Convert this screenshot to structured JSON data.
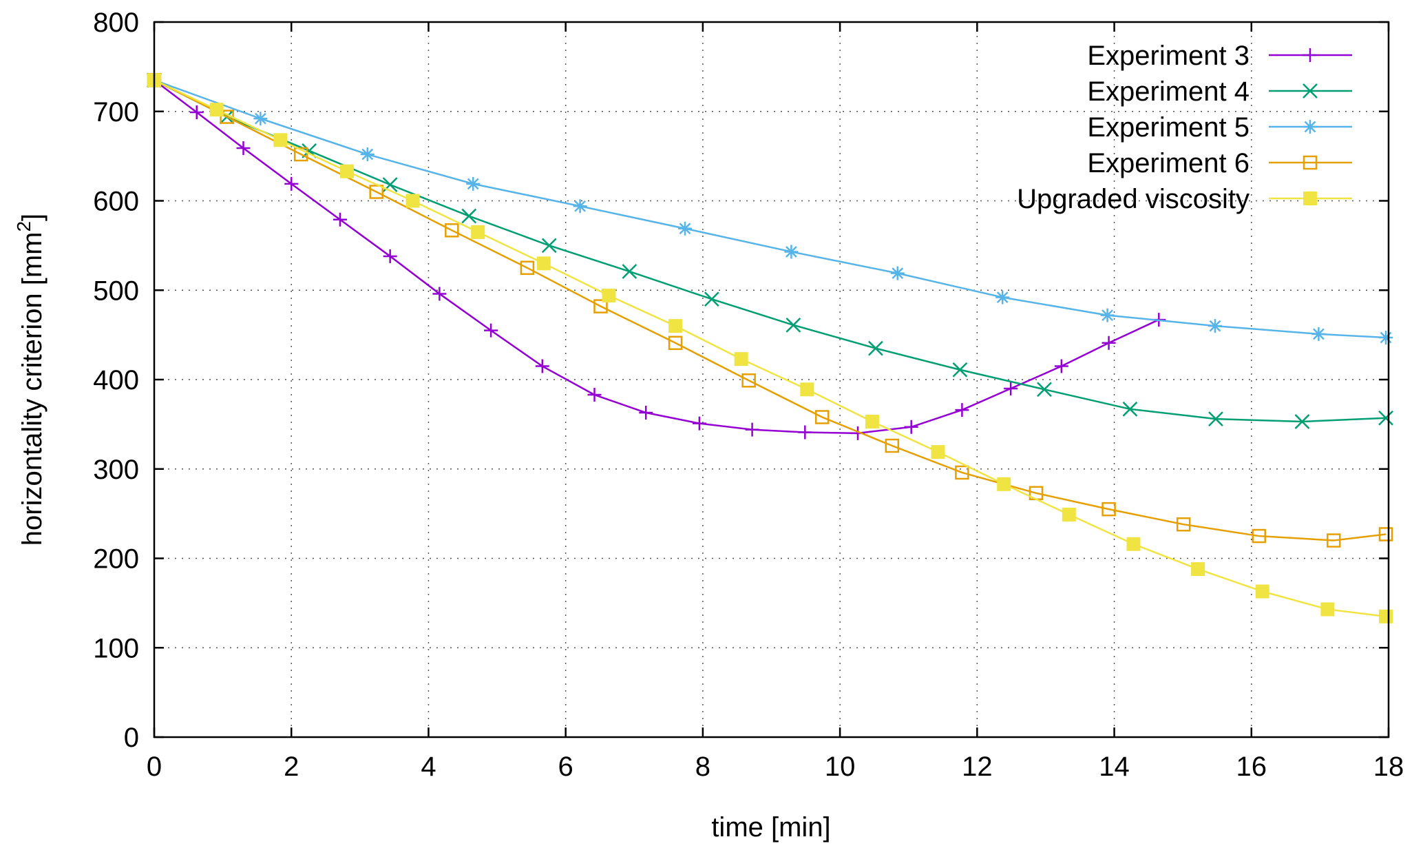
{
  "chart_data": {
    "type": "line",
    "title": "",
    "xlabel": "time [min]",
    "ylabel": "horizontality criterion [mm",
    "ylabel_sup": "2",
    "ylabel_end": "]",
    "xlim": [
      0,
      18
    ],
    "ylim": [
      0,
      800
    ],
    "xticks": [
      0,
      2,
      4,
      6,
      8,
      10,
      12,
      14,
      16,
      18
    ],
    "yticks": [
      0,
      100,
      200,
      300,
      400,
      500,
      600,
      700,
      800
    ],
    "grid": true,
    "legend_position": "top-right",
    "series": [
      {
        "name": "Experiment 3",
        "color": "#9400d3",
        "marker": "plus",
        "x": [
          0,
          0.62,
          1.3,
          2.0,
          2.71,
          3.44,
          4.16,
          4.91,
          5.66,
          6.42,
          7.17,
          7.95,
          8.72,
          9.49,
          10.26,
          11.04,
          11.78,
          12.49,
          13.23,
          13.92,
          14.65
        ],
        "y": [
          735,
          699,
          659,
          619,
          579,
          538,
          496,
          455,
          415,
          383,
          363,
          351,
          344,
          341,
          340,
          347,
          366,
          390,
          415,
          441,
          467
        ]
      },
      {
        "name": "Experiment 4",
        "color": "#009e73",
        "marker": "cross",
        "x": [
          0,
          1.06,
          2.26,
          3.44,
          4.59,
          5.76,
          6.93,
          8.13,
          9.32,
          10.52,
          11.75,
          12.98,
          14.23,
          15.48,
          16.74,
          17.96
        ],
        "y": [
          735,
          694,
          656,
          618,
          583,
          550,
          521,
          490,
          461,
          435,
          411,
          389,
          367,
          356,
          353,
          357
        ]
      },
      {
        "name": "Experiment 5",
        "color": "#56b4e9",
        "marker": "star",
        "x": [
          0,
          1.55,
          3.11,
          4.65,
          6.21,
          7.74,
          9.29,
          10.84,
          12.37,
          13.9,
          15.47,
          16.98,
          17.96
        ],
        "y": [
          735,
          692,
          652,
          619,
          594,
          569,
          543,
          519,
          492,
          472,
          460,
          451,
          447
        ]
      },
      {
        "name": "Experiment 6",
        "color": "#e69f00",
        "marker": "open-square",
        "x": [
          0,
          1.06,
          2.14,
          3.24,
          4.34,
          5.44,
          6.51,
          7.6,
          8.67,
          9.74,
          10.76,
          11.78,
          12.86,
          13.92,
          15.01,
          16.11,
          17.2,
          17.96
        ],
        "y": [
          735,
          694,
          652,
          610,
          567,
          525,
          482,
          441,
          399,
          358,
          326,
          296,
          273,
          255,
          238,
          225,
          220,
          227
        ]
      },
      {
        "name": "Upgraded viscosity",
        "color": "#f0e442",
        "marker": "filled-square",
        "x": [
          0,
          0.91,
          1.84,
          2.81,
          3.77,
          4.72,
          5.68,
          6.63,
          7.6,
          8.56,
          9.52,
          10.47,
          11.43,
          12.39,
          13.34,
          14.28,
          15.22,
          16.16,
          17.11,
          17.96
        ],
        "y": [
          735,
          702,
          668,
          633,
          600,
          565,
          530,
          494,
          460,
          423,
          389,
          353,
          319,
          283,
          249,
          216,
          188,
          163,
          143,
          135
        ]
      }
    ]
  }
}
